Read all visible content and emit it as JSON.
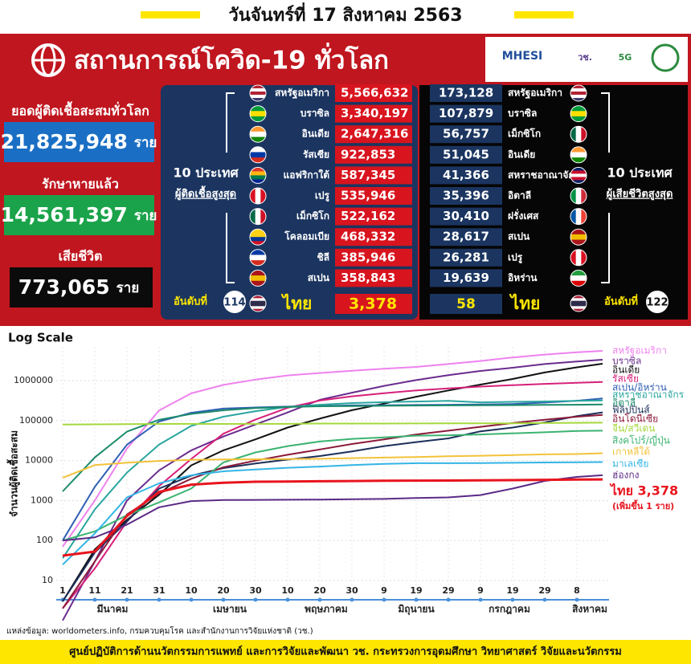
{
  "header": {
    "date": "วันจันทร์ที่ 17 สิงหาคม 2563"
  },
  "title": "สถานการณ์โควิด-19 ทั่วโลก",
  "logos": [
    "MHESI",
    "วช.",
    "5G"
  ],
  "summary": {
    "total_label": "ยอดผู้ติดเชื้อสะสมทั่วโลก",
    "total": "21,825,948",
    "recovered_label": "รักษาหายแล้ว",
    "recovered": "14,561,397",
    "deaths_label": "เสียชีวิต",
    "deaths": "773,065",
    "unit": "ราย"
  },
  "cases": {
    "heading": "10 ประเทศ",
    "subheading": "ผู้ติดเชื้อสูงสุด",
    "rows": [
      {
        "name": "สหรัฐอเมริกา",
        "value": "5,566,632"
      },
      {
        "name": "บราซิล",
        "value": "3,340,197"
      },
      {
        "name": "อินเดีย",
        "value": "2,647,316"
      },
      {
        "name": "รัสเซีย",
        "value": "922,853"
      },
      {
        "name": "แอฟริกาใต้",
        "value": "587,345"
      },
      {
        "name": "เปรู",
        "value": "535,946"
      },
      {
        "name": "เม็กซิโก",
        "value": "522,162"
      },
      {
        "name": "โคลอมเบีย",
        "value": "468,332"
      },
      {
        "name": "ชิลี",
        "value": "385,946"
      },
      {
        "name": "สเปน",
        "value": "358,843"
      }
    ],
    "rank_label": "อันดับที่",
    "rank": "114",
    "thai_name": "ไทย",
    "thai_value": "3,378"
  },
  "deaths": {
    "heading": "10 ประเทศ",
    "subheading": "ผู้เสียชีวิตสูงสุด",
    "rows": [
      {
        "name": "สหรัฐอเมริกา",
        "value": "173,128"
      },
      {
        "name": "บราซิล",
        "value": "107,879"
      },
      {
        "name": "เม็กซิโก",
        "value": "56,757"
      },
      {
        "name": "อินเดีย",
        "value": "51,045"
      },
      {
        "name": "สหราชอาณาจักร",
        "value": "41,366"
      },
      {
        "name": "อิตาลี",
        "value": "35,396"
      },
      {
        "name": "ฝรั่งเศส",
        "value": "30,410"
      },
      {
        "name": "สเปน",
        "value": "28,617"
      },
      {
        "name": "เปรู",
        "value": "26,281"
      },
      {
        "name": "อิหร่าน",
        "value": "19,639"
      }
    ],
    "rank_label": "อันดับที่",
    "rank": "122",
    "thai_name": "ไทย",
    "thai_value": "58"
  },
  "chart_data": {
    "type": "line",
    "scale_label": "Log Scale",
    "ylabel": "จำนวนผู้ติดเชื้อสะสม",
    "log": true,
    "grid": true,
    "x": [
      0,
      10,
      20,
      30,
      40,
      50,
      60,
      70,
      80,
      90,
      100,
      110,
      120,
      130,
      140,
      150,
      160,
      168
    ],
    "xlim": [
      -2,
      170
    ],
    "xticks": [
      {
        "value": 0,
        "label": "1"
      },
      {
        "value": 10,
        "label": "11"
      },
      {
        "value": 20,
        "label": "21"
      },
      {
        "value": 30,
        "label": "31"
      },
      {
        "value": 40,
        "label": "10"
      },
      {
        "value": 50,
        "label": "20"
      },
      {
        "value": 60,
        "label": "30"
      },
      {
        "value": 70,
        "label": "10"
      },
      {
        "value": 80,
        "label": "20"
      },
      {
        "value": 90,
        "label": "30"
      },
      {
        "value": 100,
        "label": "9"
      },
      {
        "value": 110,
        "label": "19"
      },
      {
        "value": 120,
        "label": "29"
      },
      {
        "value": 130,
        "label": "9"
      },
      {
        "value": 140,
        "label": "19"
      },
      {
        "value": 150,
        "label": "29"
      },
      {
        "value": 160,
        "label": "8"
      }
    ],
    "months": [
      "มีนาคม",
      "เมษายน",
      "พฤษภาคม",
      "มิถุนายน",
      "กรกฎาคม",
      "สิงหาคม"
    ],
    "ylim": [
      5,
      7000000
    ],
    "yticks": [
      10,
      100,
      1000,
      10000,
      100000,
      1000000
    ],
    "series": [
      {
        "name": "สหรัฐอเมริกา",
        "color": "#ee82ee",
        "values": [
          70,
          1000,
          20000,
          180000,
          480000,
          780000,
          1060000,
          1350000,
          1550000,
          1770000,
          1980000,
          2200000,
          2600000,
          3100000,
          3800000,
          4500000,
          5100000,
          5566632
        ]
      },
      {
        "name": "บราซิล",
        "color": "#6a2c8e",
        "values": [
          1,
          30,
          1000,
          5700,
          18000,
          40000,
          80000,
          160000,
          330000,
          500000,
          740000,
          1030000,
          1370000,
          1750000,
          2100000,
          2600000,
          3000000,
          3340197
        ]
      },
      {
        "name": "อินเดีย",
        "color": "#111111",
        "values": [
          3,
          60,
          330,
          1400,
          7600,
          18000,
          34000,
          67000,
          112000,
          182000,
          266000,
          396000,
          567000,
          795000,
          1100000,
          1600000,
          2150000,
          2647316
        ]
      },
      {
        "name": "รัสเซีย",
        "color": "#d6207a",
        "values": [
          2,
          20,
          300,
          2300,
          11000,
          47000,
          106000,
          209000,
          317000,
          405000,
          485000,
          570000,
          640000,
          710000,
          770000,
          830000,
          880000,
          922853
        ]
      },
      {
        "name": "สเปน/อิหร่าน",
        "color": "#2f5fb3",
        "values": [
          100,
          2200,
          25000,
          95000,
          157000,
          200000,
          213000,
          224000,
          232000,
          240000,
          242000,
          246000,
          249000,
          253000,
          260000,
          282000,
          315000,
          358843
        ]
      },
      {
        "name": "สหราชอาณาจักร",
        "color": "#2aa6a0",
        "values": [
          36,
          600,
          5000,
          25000,
          74000,
          125000,
          172000,
          220000,
          250000,
          275000,
          289000,
          300000,
          311000,
          286000,
          294000,
          301000,
          311000,
          318000
        ]
      },
      {
        "name": "อิตาลี",
        "color": "#1a8a6a",
        "values": [
          1700,
          12000,
          53000,
          105000,
          147000,
          181000,
          205000,
          219000,
          228000,
          232000,
          235000,
          238000,
          240000,
          242000,
          244000,
          247000,
          250000,
          253000
        ]
      },
      {
        "name": "ฟิลิปปินส์",
        "color": "#1b2f5a",
        "values": [
          3,
          50,
          300,
          2000,
          4200,
          6500,
          8500,
          10600,
          13000,
          17000,
          23000,
          29000,
          36000,
          54000,
          67000,
          90000,
          130000,
          161000
        ]
      },
      {
        "name": "อินโดนีเซีย",
        "color": "#8b1a3a",
        "values": [
          2,
          30,
          450,
          1500,
          3500,
          6800,
          10000,
          14000,
          19000,
          26000,
          34000,
          45000,
          56000,
          70000,
          87000,
          105000,
          125000,
          139000
        ]
      },
      {
        "name": "จีน/สวีเดน",
        "color": "#a6d83c",
        "values": [
          80000,
          80800,
          81300,
          82500,
          82900,
          82700,
          82900,
          82900,
          84500,
          84500,
          84600,
          84800,
          85200,
          85300,
          85700,
          86700,
          88000,
          89000
        ]
      },
      {
        "name": "สิงคโปร์/ญี่ปุ่น",
        "color": "#3cb371",
        "values": [
          100,
          170,
          430,
          900,
          2000,
          9000,
          16000,
          23000,
          30000,
          35000,
          38000,
          42000,
          43000,
          45000,
          48000,
          51000,
          55000,
          56000
        ]
      },
      {
        "name": "เกาหลีใต้",
        "color": "#f2c23a",
        "values": [
          3700,
          7700,
          8900,
          9800,
          10400,
          10700,
          10800,
          10900,
          11100,
          11500,
          11900,
          12300,
          12800,
          13200,
          13700,
          14300,
          14600,
          15300
        ]
      },
      {
        "name": "มาเลเซีย",
        "color": "#33b5e5",
        "values": [
          25,
          150,
          1200,
          2700,
          4300,
          5400,
          6000,
          6600,
          7100,
          7700,
          8300,
          8600,
          8600,
          8700,
          8800,
          8950,
          9050,
          9200
        ]
      },
      {
        "name": "ฮ่องกง",
        "color": "#5b2a86",
        "values": [
          100,
          120,
          250,
          680,
          970,
          1030,
          1040,
          1050,
          1060,
          1080,
          1100,
          1160,
          1200,
          1370,
          2000,
          3100,
          3900,
          4300
        ]
      },
      {
        "name": "ไทย 3,378",
        "color": "#e8141e",
        "values": [
          42,
          53,
          410,
          1650,
          2500,
          2800,
          2950,
          3000,
          3040,
          3080,
          3130,
          3160,
          3170,
          3200,
          3240,
          3300,
          3350,
          3378
        ]
      }
    ],
    "annotation": "(เพิ่มขึ้น 1 ราย)"
  },
  "source": "แหล่งข้อมูล: worldometers.info, กรมควบคุมโรค และสำนักงานการวิจัยแห่งชาติ (วช.)",
  "footer": "ศูนย์ปฏิบัติการด้านนวัตกรรมการแพทย์ และการวิจัยและพัฒนา  วช.   กระทรวงการอุดมศึกษา วิทยาศาสตร์ วิจัยและนวัตกรรม"
}
